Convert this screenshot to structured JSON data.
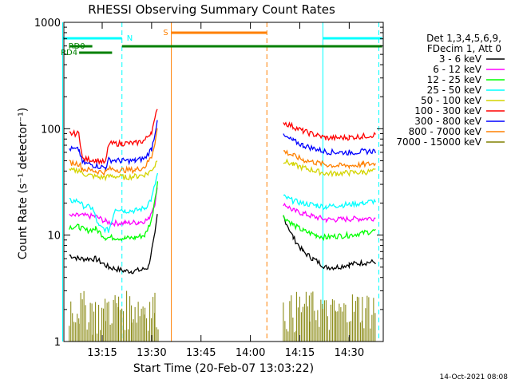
{
  "chart_data": {
    "type": "line",
    "title": "RHESSI Observing Summary Count Rates",
    "xlabel": "Start Time (20-Feb-07 13:03:22)",
    "ylabel": "Count Rate (s⁻¹ detector⁻¹)",
    "yscale": "log",
    "ylim": [
      1,
      1000
    ],
    "xlim": [
      "13:03:22",
      "14:40:20"
    ],
    "x_ticks": [
      "13:15",
      "13:30",
      "13:45",
      "14:00",
      "14:15",
      "14:30"
    ],
    "y_ticks": [
      "1",
      "10",
      "100",
      "1000"
    ],
    "legend_header": [
      "Det 1,3,4,5,6,9,",
      "FDecim 1, Att 0"
    ],
    "timestamp": "14-Oct-2021 08:08",
    "series": [
      {
        "name": "3 - 6 keV",
        "color": "#000000",
        "segments": [
          [
            [
              "13:05",
              6.5
            ],
            [
              "13:08",
              6.0
            ],
            [
              "13:13",
              6.0
            ],
            [
              "13:17",
              5.0
            ],
            [
              "13:22",
              4.6
            ],
            [
              "13:24",
              4.6
            ],
            [
              "13:27",
              4.7
            ],
            [
              "13:29",
              5.0
            ],
            [
              "13:31",
              10.0
            ],
            [
              "13:32",
              18.0
            ]
          ],
          [
            [
              "14:10",
              15.0
            ],
            [
              "14:13",
              9.5
            ],
            [
              "14:16",
              7.0
            ],
            [
              "14:19",
              6.0
            ],
            [
              "14:23",
              5.0
            ],
            [
              "14:26",
              5.0
            ],
            [
              "14:30",
              5.3
            ],
            [
              "14:34",
              5.5
            ],
            [
              "14:38",
              5.6
            ]
          ]
        ]
      },
      {
        "name": "6 - 12 keV",
        "color": "#ff00ff",
        "segments": [
          [
            [
              "13:05",
              15.0
            ],
            [
              "13:08",
              15.3
            ],
            [
              "13:13",
              15.0
            ],
            [
              "13:16",
              13.5
            ],
            [
              "13:18",
              13.0
            ],
            [
              "13:22",
              13.0
            ],
            [
              "13:26",
              13.2
            ],
            [
              "13:29",
              14.0
            ],
            [
              "13:31",
              20.0
            ],
            [
              "13:32",
              30.0
            ]
          ],
          [
            [
              "14:10",
              20.0
            ],
            [
              "14:13",
              17.0
            ],
            [
              "14:16",
              16.0
            ],
            [
              "14:19",
              15.0
            ],
            [
              "14:23",
              14.0
            ],
            [
              "14:26",
              14.0
            ],
            [
              "14:30",
              14.2
            ],
            [
              "14:34",
              14.3
            ],
            [
              "14:38",
              14.5
            ]
          ]
        ]
      },
      {
        "name": "12 - 25 keV",
        "color": "#00ff00",
        "segments": [
          [
            [
              "13:05",
              12.0
            ],
            [
              "13:08",
              12.0
            ],
            [
              "13:10",
              11.0
            ],
            [
              "13:13",
              11.5
            ],
            [
              "13:16",
              9.5
            ],
            [
              "13:19",
              9.5
            ],
            [
              "13:22",
              9.3
            ],
            [
              "13:25",
              9.5
            ],
            [
              "13:28",
              10.0
            ],
            [
              "13:30",
              14.0
            ],
            [
              "13:32",
              35.0
            ]
          ],
          [
            [
              "14:10",
              15.0
            ],
            [
              "14:13",
              12.5
            ],
            [
              "14:16",
              11.0
            ],
            [
              "14:20",
              10.0
            ],
            [
              "14:23",
              9.5
            ],
            [
              "14:26",
              9.8
            ],
            [
              "14:30",
              10.0
            ],
            [
              "14:34",
              10.5
            ],
            [
              "14:38",
              11.0
            ]
          ]
        ]
      },
      {
        "name": "25 - 50 keV",
        "color": "#00ffff",
        "segments": [
          [
            [
              "13:05",
              21.0
            ],
            [
              "13:08",
              21.0
            ],
            [
              "13:09",
              19.0
            ],
            [
              "13:12",
              18.0
            ],
            [
              "13:14",
              12.0
            ],
            [
              "13:17",
              11.0
            ],
            [
              "13:19",
              18.0
            ],
            [
              "13:22",
              17.0
            ],
            [
              "13:25",
              17.0
            ],
            [
              "13:28",
              18.0
            ],
            [
              "13:30",
              22.0
            ],
            [
              "13:32",
              40.0
            ]
          ],
          [
            [
              "14:10",
              23.0
            ],
            [
              "14:13",
              21.0
            ],
            [
              "14:16",
              20.0
            ],
            [
              "14:20",
              19.0
            ],
            [
              "14:23",
              18.5
            ],
            [
              "14:26",
              19.0
            ],
            [
              "14:30",
              19.5
            ],
            [
              "14:34",
              20.0
            ],
            [
              "14:38",
              21.0
            ]
          ]
        ]
      },
      {
        "name": "50 - 100 keV",
        "color": "#d4d400",
        "segments": [
          [
            [
              "13:05",
              40.0
            ],
            [
              "13:08",
              41.0
            ],
            [
              "13:09",
              38.0
            ],
            [
              "13:12",
              36.0
            ],
            [
              "13:14",
              35.0
            ],
            [
              "13:16",
              35.0
            ],
            [
              "13:18",
              36.0
            ],
            [
              "13:22",
              35.0
            ],
            [
              "13:26",
              36.0
            ],
            [
              "13:29",
              38.0
            ],
            [
              "13:31",
              45.0
            ],
            [
              "13:32",
              55.0
            ]
          ],
          [
            [
              "14:10",
              50.0
            ],
            [
              "14:13",
              46.0
            ],
            [
              "14:16",
              43.0
            ],
            [
              "14:20",
              40.0
            ],
            [
              "14:23",
              38.0
            ],
            [
              "14:26",
              38.0
            ],
            [
              "14:30",
              38.5
            ],
            [
              "14:34",
              39.0
            ],
            [
              "14:38",
              40.0
            ]
          ]
        ]
      },
      {
        "name": "100 - 300 keV",
        "color": "#ff0000",
        "segments": [
          [
            [
              "13:05",
              90.0
            ],
            [
              "13:08",
              90.0
            ],
            [
              "13:09",
              52.0
            ],
            [
              "13:13",
              51.0
            ],
            [
              "13:16",
              48.0
            ],
            [
              "13:17",
              72.0
            ],
            [
              "13:21",
              73.0
            ],
            [
              "13:25",
              73.0
            ],
            [
              "13:28",
              78.0
            ],
            [
              "13:30",
              95.0
            ],
            [
              "13:31",
              120.0
            ],
            [
              "13:32",
              180.0
            ]
          ],
          [
            [
              "14:10",
              115.0
            ],
            [
              "14:13",
              105.0
            ],
            [
              "14:16",
              95.0
            ],
            [
              "14:20",
              87.0
            ],
            [
              "14:23",
              82.0
            ],
            [
              "14:26",
              82.0
            ],
            [
              "14:30",
              83.0
            ],
            [
              "14:34",
              85.0
            ],
            [
              "14:38",
              88.0
            ]
          ]
        ]
      },
      {
        "name": "300 - 800 keV",
        "color": "#0000ff",
        "segments": [
          [
            [
              "13:05",
              65.0
            ],
            [
              "13:08",
              63.0
            ],
            [
              "13:09",
              48.0
            ],
            [
              "13:13",
              45.0
            ],
            [
              "13:16",
              43.0
            ],
            [
              "13:17",
              51.0
            ],
            [
              "13:21",
              50.0
            ],
            [
              "13:25",
              50.0
            ],
            [
              "13:28",
              53.0
            ],
            [
              "13:30",
              65.0
            ],
            [
              "13:31",
              90.0
            ],
            [
              "13:32",
              140.0
            ]
          ],
          [
            [
              "14:10",
              85.0
            ],
            [
              "14:13",
              77.0
            ],
            [
              "14:16",
              70.0
            ],
            [
              "14:20",
              64.0
            ],
            [
              "14:23",
              61.0
            ],
            [
              "14:26",
              60.0
            ],
            [
              "14:30",
              60.0
            ],
            [
              "14:34",
              61.0
            ],
            [
              "14:38",
              62.0
            ]
          ]
        ]
      },
      {
        "name": "800 - 7000 keV",
        "color": "#ff8000",
        "segments": [
          [
            [
              "13:05",
              48.0
            ],
            [
              "13:08",
              47.0
            ],
            [
              "13:09",
              42.0
            ],
            [
              "13:13",
              40.0
            ],
            [
              "13:16",
              39.0
            ],
            [
              "13:17",
              42.0
            ],
            [
              "13:21",
              41.0
            ],
            [
              "13:25",
              41.0
            ],
            [
              "13:28",
              44.0
            ],
            [
              "13:30",
              55.0
            ],
            [
              "13:31",
              75.0
            ],
            [
              "13:32",
              110.0
            ]
          ],
          [
            [
              "14:10",
              62.0
            ],
            [
              "14:13",
              56.0
            ],
            [
              "14:16",
              51.0
            ],
            [
              "14:20",
              48.0
            ],
            [
              "14:23",
              46.0
            ],
            [
              "14:26",
              45.0
            ],
            [
              "14:30",
              45.0
            ],
            [
              "14:34",
              46.0
            ],
            [
              "14:38",
              47.0
            ]
          ]
        ]
      },
      {
        "name": "7000 - 15000 keV",
        "color": "#808000",
        "style": "bars",
        "segments": [
          [
            [
              "13:05",
              2.5
            ],
            [
              "13:08",
              2.5
            ],
            [
              "13:12",
              2.2
            ],
            [
              "13:16",
              2.5
            ],
            [
              "13:20",
              2.5
            ],
            [
              "13:24",
              2.5
            ],
            [
              "13:28",
              2.5
            ],
            [
              "13:31",
              2.5
            ],
            [
              "13:32",
              6.0
            ]
          ],
          [
            [
              "14:10",
              2.3
            ],
            [
              "14:14",
              2.5
            ],
            [
              "14:18",
              2.5
            ],
            [
              "14:22",
              2.2
            ],
            [
              "14:26",
              2.2
            ],
            [
              "14:30",
              2.5
            ],
            [
              "14:34",
              2.5
            ],
            [
              "14:38",
              2.5
            ]
          ]
        ]
      }
    ],
    "flags": [
      {
        "label": "N",
        "color": "#00ffff",
        "bars": [
          [
            "13:03",
            "13:21"
          ],
          [
            "14:22",
            "14:40"
          ]
        ]
      },
      {
        "label": "S",
        "color": "#ff8000",
        "bars": [
          [
            "13:36",
            "14:05"
          ]
        ]
      },
      {
        "label": "RD0",
        "color": "#008000",
        "bars": [
          [
            "13:05",
            "13:12"
          ],
          [
            "13:21",
            "14:40"
          ]
        ]
      },
      {
        "label": "RD4",
        "color": "#008000",
        "bars": [
          [
            "13:08",
            "13:18"
          ]
        ]
      }
    ],
    "vlines": [
      {
        "time": "13:03",
        "color": "#00ffff",
        "dash": false
      },
      {
        "time": "13:21",
        "color": "#00ffff",
        "dash": true
      },
      {
        "time": "13:36",
        "color": "#ff8000",
        "dash": false
      },
      {
        "time": "14:05",
        "color": "#ff8000",
        "dash": true
      },
      {
        "time": "14:22",
        "color": "#00ffff",
        "dash": false
      },
      {
        "time": "14:39",
        "color": "#00ffff",
        "dash": true
      }
    ]
  }
}
